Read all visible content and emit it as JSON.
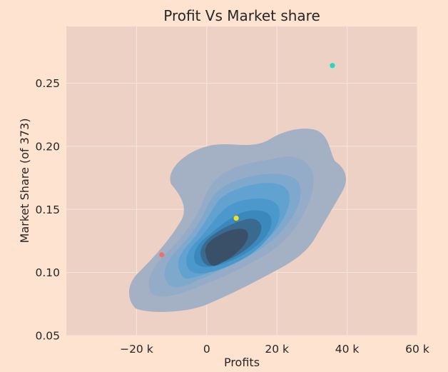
{
  "chart_data": {
    "type": "scatter",
    "title": "Profit Vs Market share",
    "xlabel": "Profits",
    "ylabel": "Market Share (of 373)",
    "xlim": [
      -40000,
      60000
    ],
    "ylim": [
      0.05,
      0.295
    ],
    "grid": true,
    "x_ticks": [
      {
        "value": -20000,
        "label": "−20 k"
      },
      {
        "value": 0,
        "label": "0"
      },
      {
        "value": 20000,
        "label": "20 k"
      },
      {
        "value": 40000,
        "label": "40 k"
      },
      {
        "value": 60000,
        "label": "60 k"
      }
    ],
    "y_ticks": [
      {
        "value": 0.05,
        "label": "0.05"
      },
      {
        "value": 0.1,
        "label": "0.10"
      },
      {
        "value": 0.15,
        "label": "0.15"
      },
      {
        "value": 0.2,
        "label": "0.20"
      },
      {
        "value": 0.25,
        "label": "0.25"
      }
    ],
    "points": [
      {
        "x": -12800,
        "y": 0.114,
        "color": "#f07068"
      },
      {
        "x": 8400,
        "y": 0.143,
        "color": "#f2e01c"
      },
      {
        "x": 35800,
        "y": 0.264,
        "color": "#22d8c0"
      }
    ],
    "density_contours": {
      "description_levels": 8,
      "colors": [
        "#a4b0c4",
        "#94acc8",
        "#7ea8cc",
        "#62a2d0",
        "#4a98cc",
        "#3a88bc",
        "#3a6a8e",
        "#3a5068"
      ],
      "center": {
        "x": 5000,
        "y": 0.112
      }
    }
  },
  "style": {
    "page_background": "#fde3d0",
    "plot_background": "#edd1c5",
    "grid_color": "#f7e6dc"
  }
}
